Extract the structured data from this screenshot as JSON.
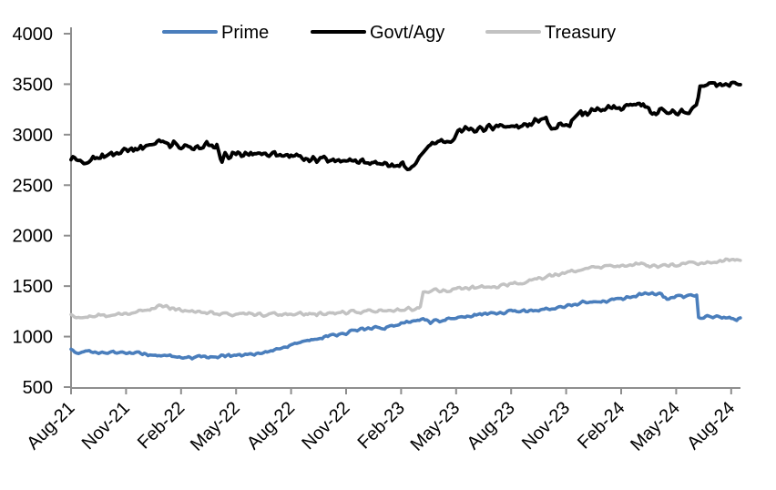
{
  "chart_data": {
    "type": "line",
    "title": "",
    "grid": false,
    "legend_position": "top-center",
    "x_axis": {
      "unit": "months since Aug-21",
      "tick_months": [
        0,
        3,
        6,
        9,
        12,
        15,
        18,
        21,
        24,
        27,
        30,
        33,
        36
      ],
      "tick_labels": [
        "Aug-21",
        "Nov-21",
        "Feb-22",
        "May-22",
        "Aug-22",
        "Nov-22",
        "Feb-23",
        "May-23",
        "Aug-23",
        "Nov-23",
        "Feb-24",
        "May-24",
        "Aug-24"
      ]
    },
    "y_axis": {
      "min": 500,
      "max": 4000,
      "tick_step": 500,
      "ticks": [
        4000,
        3500,
        3000,
        2500,
        2000,
        1500,
        1000,
        500
      ]
    },
    "series": [
      {
        "name": "Prime",
        "color": "#4a7ebc",
        "points": [
          [
            0,
            855
          ],
          [
            0.4,
            845
          ],
          [
            0.8,
            850
          ],
          [
            1.2,
            843
          ],
          [
            1.6,
            847
          ],
          [
            2,
            844
          ],
          [
            2.4,
            842
          ],
          [
            2.8,
            840
          ],
          [
            3.2,
            836
          ],
          [
            3.6,
            831
          ],
          [
            4,
            827
          ],
          [
            4.4,
            820
          ],
          [
            4.8,
            814
          ],
          [
            5.2,
            809
          ],
          [
            5.6,
            804
          ],
          [
            6,
            800
          ],
          [
            6.5,
            797
          ],
          [
            7,
            799
          ],
          [
            7.5,
            802
          ],
          [
            8,
            807
          ],
          [
            8.5,
            811
          ],
          [
            9,
            815
          ],
          [
            9.4,
            812
          ],
          [
            9.7,
            817
          ],
          [
            10,
            826
          ],
          [
            10.5,
            843
          ],
          [
            11,
            864
          ],
          [
            11.5,
            887
          ],
          [
            12,
            910
          ],
          [
            12.5,
            938
          ],
          [
            13,
            963
          ],
          [
            13.5,
            984
          ],
          [
            14,
            1000
          ],
          [
            14.5,
            1020
          ],
          [
            15,
            1040
          ],
          [
            15.5,
            1056
          ],
          [
            16,
            1070
          ],
          [
            16.4,
            1084
          ],
          [
            16.8,
            1097
          ],
          [
            17.1,
            1088
          ],
          [
            17.5,
            1106
          ],
          [
            18,
            1130
          ],
          [
            18.5,
            1152
          ],
          [
            19,
            1170
          ],
          [
            19.3,
            1176
          ],
          [
            19.6,
            1145
          ],
          [
            20,
            1152
          ],
          [
            20.5,
            1170
          ],
          [
            21,
            1190
          ],
          [
            21.5,
            1202
          ],
          [
            22,
            1213
          ],
          [
            22.5,
            1222
          ],
          [
            23,
            1229
          ],
          [
            23.5,
            1237
          ],
          [
            24,
            1243
          ],
          [
            24.5,
            1251
          ],
          [
            25,
            1258
          ],
          [
            25.5,
            1264
          ],
          [
            26,
            1272
          ],
          [
            26.5,
            1283
          ],
          [
            27,
            1296
          ],
          [
            27.4,
            1316
          ],
          [
            27.8,
            1338
          ],
          [
            28.2,
            1348
          ],
          [
            28.6,
            1346
          ],
          [
            29,
            1353
          ],
          [
            29.5,
            1362
          ],
          [
            30,
            1374
          ],
          [
            30.5,
            1390
          ],
          [
            31,
            1418
          ],
          [
            31.5,
            1430
          ],
          [
            31.9,
            1421
          ],
          [
            32.2,
            1426
          ],
          [
            32.5,
            1374
          ],
          [
            32.8,
            1390
          ],
          [
            33.1,
            1400
          ],
          [
            33.4,
            1398
          ],
          [
            33.7,
            1408
          ],
          [
            34,
            1413
          ],
          [
            34.12,
            1416
          ],
          [
            34.22,
            1190
          ],
          [
            34.6,
            1195
          ],
          [
            35,
            1189
          ],
          [
            35.4,
            1193
          ],
          [
            35.8,
            1181
          ],
          [
            36.2,
            1176
          ],
          [
            36.5,
            1180
          ]
        ]
      },
      {
        "name": "Govt/Agy",
        "color": "#000000",
        "points": [
          [
            0,
            2780
          ],
          [
            0.4,
            2763
          ],
          [
            0.8,
            2747
          ],
          [
            1.2,
            2776
          ],
          [
            1.6,
            2764
          ],
          [
            2,
            2798
          ],
          [
            2.5,
            2812
          ],
          [
            3,
            2828
          ],
          [
            3.5,
            2850
          ],
          [
            4,
            2874
          ],
          [
            4.4,
            2902
          ],
          [
            4.7,
            2938
          ],
          [
            5,
            2918
          ],
          [
            5.3,
            2882
          ],
          [
            5.6,
            2903
          ],
          [
            6,
            2878
          ],
          [
            6.4,
            2902
          ],
          [
            6.8,
            2868
          ],
          [
            7.2,
            2898
          ],
          [
            7.6,
            2890
          ],
          [
            7.95,
            2908
          ],
          [
            8.15,
            2760
          ],
          [
            8.4,
            2782
          ],
          [
            8.8,
            2808
          ],
          [
            9.2,
            2818
          ],
          [
            9.6,
            2812
          ],
          [
            10,
            2810
          ],
          [
            10.5,
            2802
          ],
          [
            11,
            2796
          ],
          [
            11.5,
            2790
          ],
          [
            12,
            2786
          ],
          [
            12.5,
            2780
          ],
          [
            13,
            2770
          ],
          [
            13.5,
            2756
          ],
          [
            14,
            2746
          ],
          [
            14.5,
            2736
          ],
          [
            15,
            2726
          ],
          [
            15.4,
            2736
          ],
          [
            15.8,
            2720
          ],
          [
            16.2,
            2716
          ],
          [
            16.5,
            2692
          ],
          [
            16.8,
            2716
          ],
          [
            17.2,
            2708
          ],
          [
            17.5,
            2682
          ],
          [
            17.8,
            2706
          ],
          [
            18,
            2695
          ],
          [
            18.35,
            2662
          ],
          [
            18.7,
            2682
          ],
          [
            19,
            2780
          ],
          [
            19.5,
            2888
          ],
          [
            19.8,
            2910
          ],
          [
            20.1,
            2952
          ],
          [
            20.5,
            2926
          ],
          [
            21,
            3000
          ],
          [
            21.5,
            3048
          ],
          [
            22,
            3058
          ],
          [
            22.3,
            3042
          ],
          [
            22.8,
            3068
          ],
          [
            23.2,
            3084
          ],
          [
            23.6,
            3068
          ],
          [
            24,
            3098
          ],
          [
            24.4,
            3076
          ],
          [
            24.8,
            3104
          ],
          [
            25.3,
            3120
          ],
          [
            25.9,
            3144
          ],
          [
            26.2,
            3056
          ],
          [
            26.6,
            3090
          ],
          [
            27.2,
            3120
          ],
          [
            27.8,
            3234
          ],
          [
            28.05,
            3186
          ],
          [
            28.5,
            3248
          ],
          [
            29,
            3254
          ],
          [
            29.5,
            3264
          ],
          [
            30,
            3270
          ],
          [
            30.6,
            3280
          ],
          [
            31.2,
            3300
          ],
          [
            31.6,
            3252
          ],
          [
            32,
            3216
          ],
          [
            32.6,
            3226
          ],
          [
            33.2,
            3230
          ],
          [
            33.8,
            3236
          ],
          [
            34.1,
            3256
          ],
          [
            34.3,
            3480
          ],
          [
            34.6,
            3504
          ],
          [
            35,
            3494
          ],
          [
            35.6,
            3500
          ],
          [
            36.1,
            3518
          ],
          [
            36.5,
            3528
          ]
        ]
      },
      {
        "name": "Treasury",
        "color": "#c2c2c2",
        "points": [
          [
            0,
            1200
          ],
          [
            0.5,
            1196
          ],
          [
            1,
            1200
          ],
          [
            1.5,
            1205
          ],
          [
            2,
            1210
          ],
          [
            2.5,
            1218
          ],
          [
            3,
            1226
          ],
          [
            3.5,
            1240
          ],
          [
            4,
            1256
          ],
          [
            4.5,
            1280
          ],
          [
            4.8,
            1296
          ],
          [
            5.1,
            1300
          ],
          [
            5.4,
            1286
          ],
          [
            5.8,
            1268
          ],
          [
            6.2,
            1254
          ],
          [
            6.6,
            1245
          ],
          [
            7,
            1238
          ],
          [
            7.5,
            1231
          ],
          [
            8,
            1227
          ],
          [
            8.5,
            1222
          ],
          [
            9,
            1220
          ],
          [
            9.5,
            1221
          ],
          [
            10,
            1217
          ],
          [
            10.5,
            1215
          ],
          [
            11,
            1218
          ],
          [
            11.5,
            1220
          ],
          [
            12,
            1222
          ],
          [
            12.5,
            1224
          ],
          [
            13,
            1227
          ],
          [
            13.5,
            1229
          ],
          [
            14,
            1232
          ],
          [
            14.5,
            1235
          ],
          [
            15,
            1238
          ],
          [
            15.5,
            1243
          ],
          [
            16,
            1250
          ],
          [
            16.5,
            1256
          ],
          [
            17,
            1260
          ],
          [
            17.5,
            1266
          ],
          [
            18,
            1270
          ],
          [
            18.4,
            1273
          ],
          [
            18.8,
            1280
          ],
          [
            19.05,
            1290
          ],
          [
            19.2,
            1442
          ],
          [
            19.5,
            1456
          ],
          [
            19.9,
            1465
          ],
          [
            20.3,
            1455
          ],
          [
            20.7,
            1466
          ],
          [
            21,
            1476
          ],
          [
            21.4,
            1470
          ],
          [
            21.8,
            1483
          ],
          [
            22.2,
            1490
          ],
          [
            22.6,
            1483
          ],
          [
            23,
            1497
          ],
          [
            23.5,
            1506
          ],
          [
            24,
            1518
          ],
          [
            24.5,
            1537
          ],
          [
            25,
            1556
          ],
          [
            25.5,
            1576
          ],
          [
            26,
            1595
          ],
          [
            26.5,
            1615
          ],
          [
            27,
            1634
          ],
          [
            27.5,
            1655
          ],
          [
            28,
            1674
          ],
          [
            28.5,
            1684
          ],
          [
            29,
            1691
          ],
          [
            29.5,
            1698
          ],
          [
            30,
            1705
          ],
          [
            30.5,
            1712
          ],
          [
            31,
            1722
          ],
          [
            31.3,
            1714
          ],
          [
            31.55,
            1686
          ],
          [
            31.8,
            1698
          ],
          [
            32.1,
            1701
          ],
          [
            32.5,
            1707
          ],
          [
            33,
            1715
          ],
          [
            33.5,
            1720
          ],
          [
            34,
            1725
          ],
          [
            34.5,
            1731
          ],
          [
            35,
            1740
          ],
          [
            35.5,
            1750
          ],
          [
            36,
            1760
          ],
          [
            36.5,
            1772
          ]
        ]
      }
    ]
  },
  "colors": {
    "background": "#ffffff",
    "axis": "#8e8e8e",
    "text": "#000000"
  }
}
